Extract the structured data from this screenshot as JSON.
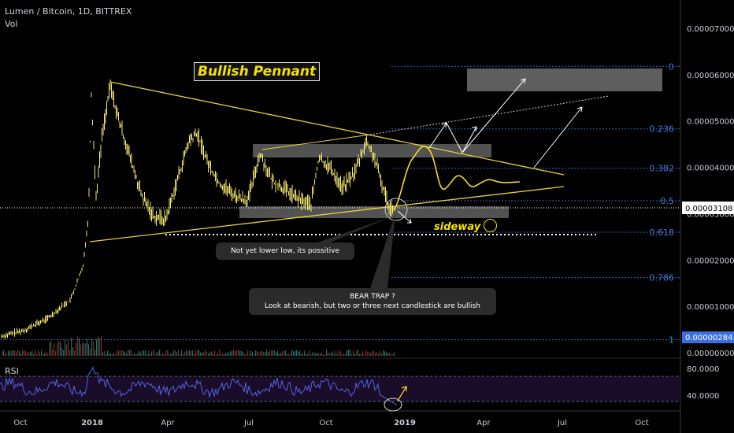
{
  "header": {
    "symbol": "Lumen / Bitcoin, 1D, BITTREX",
    "vol_label": "Vol"
  },
  "annotations": {
    "title": "Bullish Pennant",
    "sideway": "sideway",
    "callout_1": "Not yet lower low, its possitive",
    "callout_2_line1": "BEAR TRAP ?",
    "callout_2_line2": "Look at bearish, but two or three next candlestick are bullish"
  },
  "chart_data": [
    {
      "type": "line",
      "title": "Lumen / Bitcoin, 1D, BITTREX",
      "y_axis": {
        "ticks": [
          "0.00007000",
          "0.00006000",
          "0.00005000",
          "0.00004000",
          "0.00003000",
          "0.00002000",
          "0.00001000",
          "0.00000000"
        ],
        "current_price": "0.00003108",
        "marked_price": "0.00000284",
        "ylim": [
          0,
          7.5e-05
        ]
      },
      "x_axis": {
        "ticks": [
          "Oct",
          "2018",
          "Apr",
          "Jul",
          "Oct",
          "2019",
          "Apr",
          "Jul",
          "Oct"
        ],
        "bold_ticks": [
          "2018",
          "2019"
        ]
      },
      "fib_levels": [
        {
          "label": "0",
          "price": 6.18e-05
        },
        {
          "label": "0.236",
          "price": 4.83e-05
        },
        {
          "label": "0.382",
          "price": 3.98e-05
        },
        {
          "label": "0.5",
          "price": 3.28e-05
        },
        {
          "label": "0.618",
          "price": 2.6e-05
        },
        {
          "label": "0.786",
          "price": 1.62e-05
        },
        {
          "label": "1",
          "price": 2.8e-06
        }
      ]
    },
    {
      "type": "line",
      "title": "RSI",
      "y_axis": {
        "ticks": [
          "80.0000",
          "40.0000"
        ]
      }
    }
  ],
  "colors": {
    "pennant": "#e8d23a",
    "candle": "#f5e96b",
    "fib": "#3a5fc0",
    "rsi": "#5463e0",
    "zone": "#8a8a8a"
  }
}
